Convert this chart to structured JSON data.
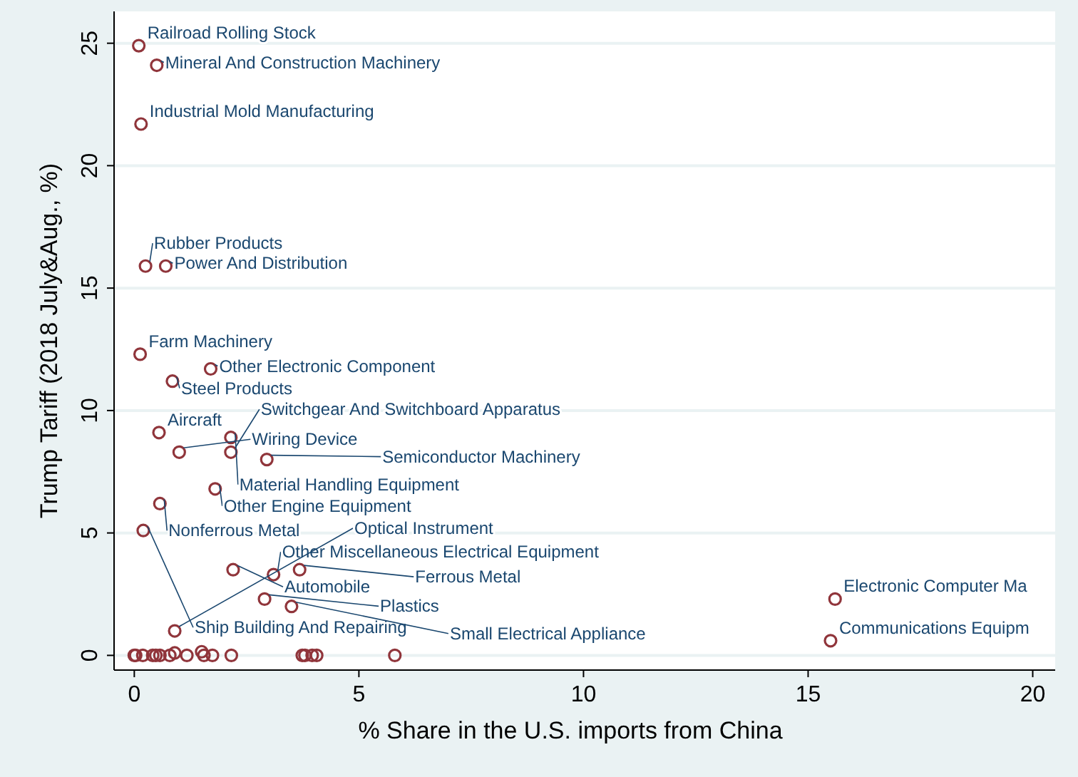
{
  "chart_data": {
    "type": "scatter",
    "xlabel": "% Share in the U.S. imports from China",
    "ylabel": "Trump Tariff (2018 July&Aug., %)",
    "xlim": [
      -0.45,
      20.5
    ],
    "xticks": [
      0,
      5,
      10,
      15,
      20
    ],
    "ylim": [
      -0.6,
      26.3
    ],
    "yticks": [
      0,
      5,
      10,
      15,
      20,
      25
    ],
    "grid": "y",
    "marker": "circle",
    "series": [
      {
        "color": "#90353b",
        "x": [
          0.1,
          0.5,
          0.15,
          0.25,
          0.7,
          0.13,
          1.7,
          0.85,
          0.55,
          1.0,
          2.15,
          2.15,
          2.95,
          1.8,
          0.57,
          0.2,
          2.2,
          3.1,
          3.68,
          2.9,
          3.5,
          0.9,
          15.6,
          15.5,
          0,
          0.03,
          0.19,
          0.41,
          0.48,
          0.57,
          0.79,
          1.17,
          1.55,
          1.74,
          2.16,
          3.74,
          3.8,
          3.96,
          4.06,
          5.8,
          0.9,
          1.5
        ],
        "values": [
          24.9,
          24.1,
          21.7,
          15.9,
          15.9,
          12.3,
          11.7,
          11.2,
          9.1,
          8.3,
          8.9,
          8.3,
          8.0,
          6.8,
          6.2,
          5.1,
          3.5,
          3.3,
          3.5,
          2.3,
          2.0,
          1.0,
          2.3,
          0.6,
          0,
          0,
          0,
          0,
          0,
          0,
          0,
          0,
          0,
          0,
          0,
          0,
          0,
          0,
          0,
          0,
          0.1,
          0.15
        ]
      }
    ],
    "annotations": [
      {
        "text": "Railroad Rolling Stock",
        "x": 0.1,
        "y": 24.9
      },
      {
        "text": "Mineral And Construction Machinery",
        "x": 0.5,
        "y": 24.1
      },
      {
        "text": "Industrial Mold Manufacturing",
        "x": 0.15,
        "y": 21.7
      },
      {
        "text": "Rubber Products",
        "x": 0.25,
        "y": 15.9
      },
      {
        "text": "Power And Distribution",
        "x": 0.7,
        "y": 15.9
      },
      {
        "text": "Farm Machinery",
        "x": 0.13,
        "y": 12.3
      },
      {
        "text": "Other Electronic Component",
        "x": 1.7,
        "y": 11.7
      },
      {
        "text": "Steel Products",
        "x": 0.85,
        "y": 11.2
      },
      {
        "text": "Aircraft",
        "x": 0.55,
        "y": 9.1
      },
      {
        "text": "Wiring Device",
        "x": 1.0,
        "y": 8.3
      },
      {
        "text": "Material Handling Equipment",
        "x": 2.15,
        "y": 8.9
      },
      {
        "text": "Switchgear And Switchboard Apparatus",
        "x": 2.15,
        "y": 8.3
      },
      {
        "text": "Semiconductor Machinery",
        "x": 2.95,
        "y": 8.0
      },
      {
        "text": "Other Engine Equipment",
        "x": 1.8,
        "y": 6.8
      },
      {
        "text": "Nonferrous Metal",
        "x": 0.57,
        "y": 6.2
      },
      {
        "text": "Ship Building And Repairing",
        "x": 0.2,
        "y": 5.1
      },
      {
        "text": "Automobile",
        "x": 2.2,
        "y": 3.5
      },
      {
        "text": "Other Miscellaneous Electrical Equipment",
        "x": 3.1,
        "y": 3.3
      },
      {
        "text": "Ferrous Metal",
        "x": 3.68,
        "y": 3.5
      },
      {
        "text": "Plastics",
        "x": 2.9,
        "y": 2.3
      },
      {
        "text": "Small Electrical Appliance",
        "x": 3.5,
        "y": 2.0
      },
      {
        "text": "Optical Instrument",
        "x": 0.9,
        "y": 1.0
      },
      {
        "text": "Electronic Computer Ma",
        "x": 15.6,
        "y": 2.3
      },
      {
        "text": "Communications Equipm",
        "x": 15.5,
        "y": 0.6
      }
    ]
  }
}
